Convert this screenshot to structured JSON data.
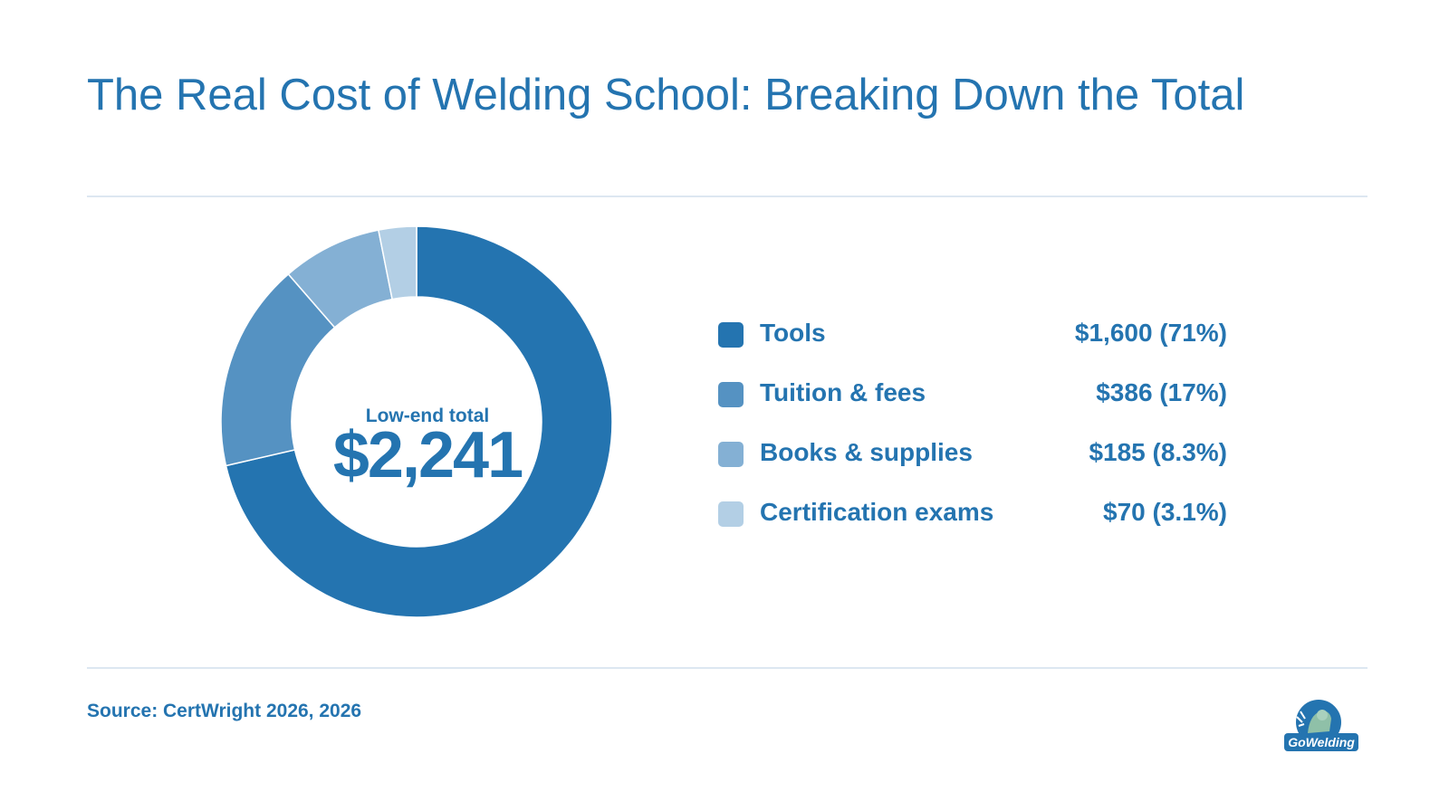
{
  "title": "The Real Cost of Welding School: Breaking Down the Total",
  "source": "Source: CertWright 2026, 2026",
  "logo_text": "GoWelding",
  "chart_data": {
    "type": "pie",
    "variant": "donut",
    "title": "The Real Cost of Welding School: Breaking Down the Total",
    "center_label": "Low-end total",
    "center_value": "$2,241",
    "total": 2241,
    "legend_position": "right",
    "slices": [
      {
        "label": "Tools",
        "value": 1600,
        "display": "$1,600 (71%)",
        "color": "#2474b0"
      },
      {
        "label": "Tuition & fees",
        "value": 386,
        "display": "$386 (17%)",
        "color": "#5592c2"
      },
      {
        "label": "Books & supplies",
        "value": 185,
        "display": "$185 (8.3%)",
        "color": "#84b0d4"
      },
      {
        "label": "Certification exams",
        "value": 70,
        "display": "$70 (3.1%)",
        "color": "#b3cfe5"
      }
    ]
  }
}
